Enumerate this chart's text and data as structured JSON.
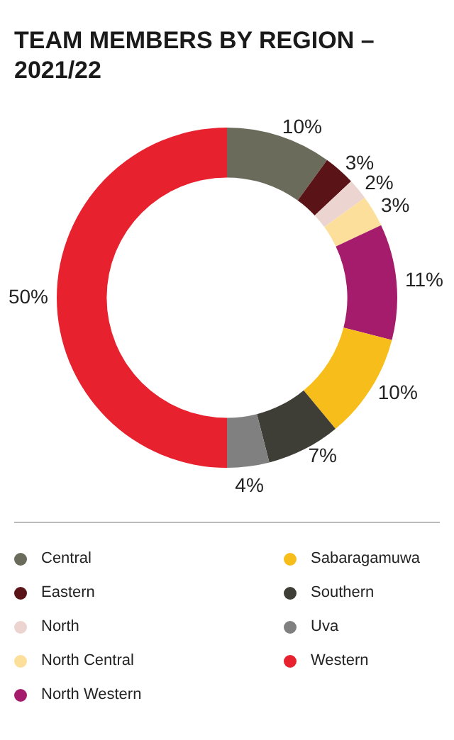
{
  "chart_data": {
    "type": "donut",
    "title": "TEAM MEMBERS BY REGION – 2021/22",
    "categories": [
      "Central",
      "Eastern",
      "North",
      "North Central",
      "North Western",
      "Sabaragamuwa",
      "Southern",
      "Uva",
      "Western"
    ],
    "values": [
      10,
      3,
      2,
      3,
      11,
      10,
      7,
      4,
      50
    ],
    "value_labels": [
      "10%",
      "3%",
      "2%",
      "3%",
      "11%",
      "10%",
      "7%",
      "4%",
      "50%"
    ],
    "colors": [
      "#6b6b5c",
      "#5a1418",
      "#ecd5d0",
      "#fddf9c",
      "#a51c6c",
      "#f7be1b",
      "#3e3e36",
      "#808080",
      "#e8212f"
    ],
    "legend": "bottom"
  }
}
